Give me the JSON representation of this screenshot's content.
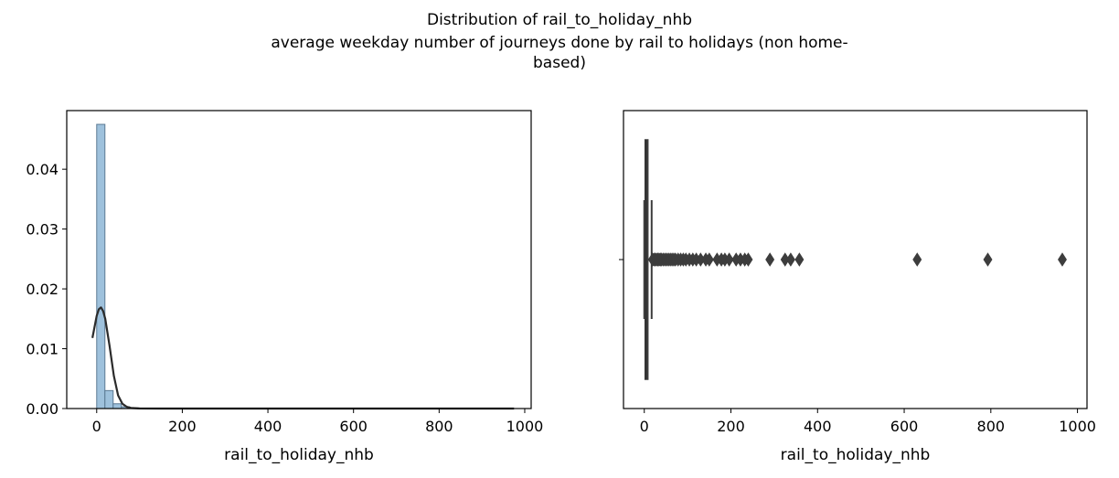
{
  "suptitle": {
    "line1": "Distribution of rail_to_holiday_nhb",
    "line2": "average weekday number of journeys done by rail to holidays (non home-",
    "line3": "based)"
  },
  "chart_data": [
    {
      "type": "histogram",
      "xlabel": "rail_to_holiday_nhb",
      "ylabel": "",
      "xlim": [
        -70,
        1015
      ],
      "ylim": [
        0,
        0.0498
      ],
      "xticks": [
        0,
        200,
        400,
        600,
        800,
        1000
      ],
      "yticks": [
        0.0,
        0.01,
        0.02,
        0.03,
        0.04
      ],
      "ytick_labels": [
        "0.00",
        "0.01",
        "0.02",
        "0.03",
        "0.04"
      ],
      "bin_width": 19.2,
      "bins": [
        {
          "x0": 0,
          "x1": 19.2,
          "density": 0.0475
        },
        {
          "x0": 19.2,
          "x1": 38.4,
          "density": 0.003
        },
        {
          "x0": 38.4,
          "x1": 57.6,
          "density": 0.0008
        },
        {
          "x0": 57.6,
          "x1": 76.8,
          "density": 0.0003
        },
        {
          "x0": 76.8,
          "x1": 96,
          "density": 0.0001
        },
        {
          "x0": 96,
          "x1": 115.2,
          "density": 5e-05
        }
      ],
      "kde": {
        "x": [
          -10,
          0,
          5,
          10,
          15,
          20,
          30,
          40,
          50,
          60,
          70,
          80,
          100,
          150,
          200,
          400,
          600,
          800,
          975
        ],
        "y": [
          0.0118,
          0.0155,
          0.0166,
          0.0169,
          0.0163,
          0.015,
          0.0105,
          0.0055,
          0.0022,
          0.0008,
          0.0003,
          0.0001,
          2e-05,
          0.0,
          0.0,
          0.0,
          0.0,
          0.0,
          0.0
        ]
      },
      "colors": {
        "bar_fill": "#9ec1dc",
        "bar_edge": "#5c7a94",
        "kde": "#2b2b2b"
      }
    },
    {
      "type": "boxplot",
      "xlabel": "rail_to_holiday_nhb",
      "xlim": [
        -48,
        1022
      ],
      "xticks": [
        0,
        200,
        400,
        600,
        800,
        1000
      ],
      "whisker_low": 0,
      "q1": 2,
      "median": 4,
      "q3": 8,
      "whisker_high": 17,
      "outliers": [
        19,
        22,
        25,
        28,
        31,
        34,
        37,
        40,
        44,
        48,
        52,
        56,
        60,
        64,
        68,
        72,
        78,
        84,
        90,
        96,
        104,
        112,
        120,
        130,
        142,
        150,
        168,
        178,
        186,
        196,
        212,
        222,
        232,
        240,
        290,
        325,
        338,
        358,
        630,
        793,
        965
      ],
      "colors": {
        "box": "#3d3d3d",
        "outlier": "#3d3d3d"
      }
    }
  ]
}
